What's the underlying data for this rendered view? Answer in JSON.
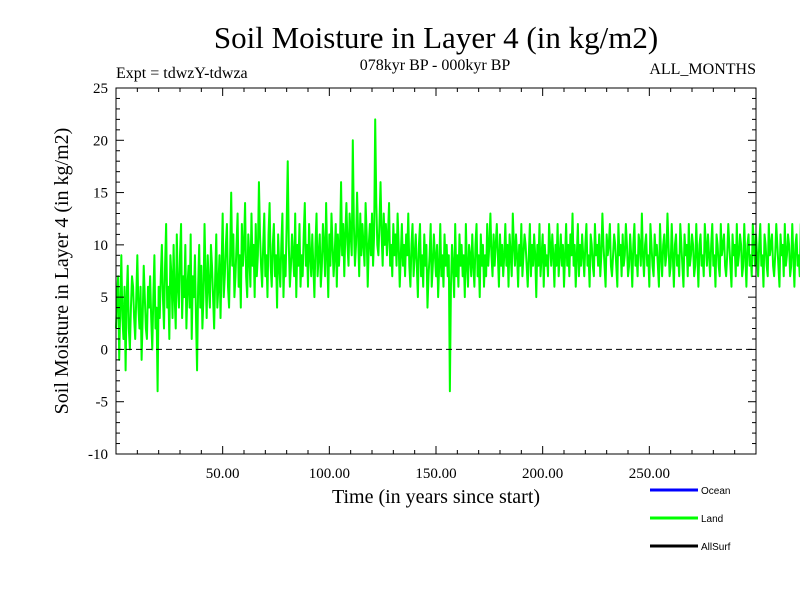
{
  "chart_data": {
    "type": "line",
    "title": "Soil Moisture in Layer 4 (in kg/m2)",
    "subtitle": "078kyr BP - 000kyr BP",
    "experiment_label": "Expt = tdwzY-tdwza",
    "months_label": "ALL_MONTHS",
    "xlabel": "Time (in years since start)",
    "ylabel": "Soil Moisture in Layer 4 (in kg/m2)",
    "xlim": [
      0,
      300
    ],
    "ylim": [
      -10,
      25
    ],
    "x_ticks": [
      50,
      100,
      150,
      200,
      250
    ],
    "x_tick_labels": [
      "50.00",
      "100.00",
      "150.00",
      "200.00",
      "250.00"
    ],
    "y_ticks": [
      -10,
      -5,
      0,
      5,
      10,
      15,
      20,
      25
    ],
    "y_tick_labels": [
      "-10",
      "-5",
      "0",
      "5",
      "10",
      "15",
      "20",
      "25"
    ],
    "reference_line": 0,
    "legend": [
      {
        "name": "Ocean",
        "color": "#0000ff"
      },
      {
        "name": "Land",
        "color": "#00ff00"
      },
      {
        "name": "AllSurf",
        "color": "#000000"
      }
    ],
    "series": [
      {
        "name": "Land",
        "color": "#00ff00",
        "x_start": 0,
        "x_step": 0.5,
        "values": [
          2,
          5,
          7,
          -1,
          4,
          9,
          3,
          1,
          6,
          -2,
          5,
          8,
          2,
          0,
          4,
          7,
          6,
          3,
          1,
          5,
          9,
          4,
          2,
          6,
          -1,
          3,
          8,
          5,
          2,
          1,
          6,
          4,
          7,
          3,
          0,
          5,
          9,
          2,
          4,
          -4,
          6,
          3,
          7,
          10,
          5,
          2,
          8,
          12,
          4,
          6,
          1,
          9,
          7,
          3,
          10,
          5,
          2,
          11,
          6,
          4,
          9,
          12,
          3,
          7,
          5,
          10,
          2,
          6,
          8,
          4,
          11,
          1,
          7,
          5,
          9,
          3,
          -2,
          6,
          10,
          4,
          8,
          2,
          5,
          12,
          7,
          3,
          9,
          6,
          4,
          10,
          8,
          5,
          2,
          7,
          11,
          4,
          6,
          9,
          3,
          8,
          13,
          5,
          7,
          10,
          12,
          6,
          4,
          9,
          15,
          8,
          11,
          5,
          7,
          10,
          13,
          6,
          9,
          4,
          12,
          8,
          10,
          14,
          7,
          5,
          11,
          9,
          6,
          13,
          8,
          10,
          5,
          12,
          7,
          9,
          16,
          11,
          8,
          6,
          10,
          13,
          7,
          9,
          5,
          11,
          14,
          8,
          6,
          10,
          12,
          7,
          9,
          4,
          11,
          8,
          6,
          10,
          13,
          5,
          9,
          7,
          12,
          18,
          10,
          6,
          8,
          11,
          9,
          7,
          13,
          5,
          10,
          8,
          12,
          6,
          9,
          7,
          11,
          14,
          8,
          10,
          6,
          12,
          9,
          7,
          11,
          8,
          5,
          10,
          13,
          7,
          9,
          11,
          6,
          8,
          12,
          10,
          7,
          14,
          9,
          5,
          11,
          8,
          13,
          10,
          7,
          9,
          12,
          6,
          11,
          8,
          10,
          16,
          9,
          12,
          7,
          11,
          14,
          10,
          8,
          13,
          11,
          9,
          20,
          12,
          8,
          10,
          15,
          11,
          7,
          13,
          9,
          12,
          10,
          8,
          14,
          11,
          6,
          10,
          12,
          9,
          13,
          8,
          11,
          22,
          14,
          10,
          9,
          12,
          16,
          11,
          8,
          13,
          10,
          12,
          9,
          11,
          14,
          8,
          10,
          7,
          12,
          9,
          11,
          8,
          13,
          10,
          6,
          9,
          12,
          8,
          10,
          7,
          11,
          9,
          13,
          8,
          6,
          10,
          12,
          7,
          9,
          11,
          8,
          5,
          10,
          12,
          7,
          9,
          6,
          11,
          8,
          10,
          4,
          7,
          9,
          12,
          6,
          8,
          11,
          9,
          7,
          10,
          5,
          8,
          12,
          7,
          9,
          6,
          11,
          8,
          10,
          7,
          9,
          -4,
          6,
          10,
          8,
          5,
          12,
          7,
          9,
          6,
          11,
          8,
          10,
          7,
          9,
          5,
          12,
          8,
          6,
          10,
          9,
          7,
          11,
          8,
          6,
          10,
          12,
          7,
          9,
          5,
          11,
          8,
          10,
          6,
          9,
          7,
          12,
          8,
          10,
          13,
          9,
          7,
          11,
          8,
          10,
          12,
          9,
          6,
          11,
          8,
          10,
          7,
          9,
          12,
          8,
          10,
          6,
          11,
          9,
          7,
          13,
          10,
          8,
          11,
          9,
          6,
          10,
          8,
          12,
          7,
          9,
          11,
          10,
          8,
          6,
          9,
          12,
          7,
          10,
          8,
          11,
          9,
          5,
          10,
          8,
          12,
          7,
          9,
          11,
          6,
          10,
          8,
          9,
          7,
          12,
          10,
          8,
          11,
          9,
          6,
          10,
          8,
          12,
          7,
          9,
          11,
          8,
          10,
          6,
          9,
          12,
          8,
          10,
          7,
          11,
          9,
          13,
          8,
          10,
          6,
          9,
          12,
          7,
          10,
          8,
          11,
          9,
          7,
          10,
          12,
          8,
          9,
          6,
          11,
          10,
          8,
          7,
          12,
          9,
          10,
          8,
          11,
          7,
          9,
          13,
          10,
          8,
          6,
          11,
          9,
          10,
          12,
          8,
          7,
          9,
          11,
          10,
          8,
          6,
          12,
          9,
          10,
          7,
          11,
          8,
          9,
          12,
          10,
          7,
          8,
          11,
          9,
          6,
          10,
          12,
          8,
          9,
          7,
          11,
          10,
          8,
          13,
          9,
          7,
          10,
          11,
          8,
          9,
          6,
          12,
          10,
          8,
          7,
          11,
          9,
          10,
          8,
          6,
          12,
          9,
          7,
          10,
          11,
          8,
          9,
          13,
          10,
          7,
          8,
          12,
          9,
          6,
          10,
          11,
          8,
          9,
          7,
          12,
          10,
          8,
          6,
          11,
          9,
          10,
          7,
          12,
          8,
          9,
          11,
          10,
          7,
          8,
          12,
          9,
          6,
          10,
          11,
          8,
          9,
          7,
          12,
          10,
          8,
          11,
          9,
          7,
          10,
          12,
          8,
          9,
          6,
          11,
          10,
          8,
          7,
          12,
          9,
          10,
          11,
          8,
          7,
          9,
          12,
          10,
          8,
          6,
          11,
          9,
          10,
          7,
          12,
          8,
          9,
          11,
          10,
          7,
          8,
          12,
          9,
          6,
          10,
          11,
          8,
          9,
          7,
          12,
          10,
          8,
          11,
          9,
          7,
          10,
          12,
          8,
          9,
          6,
          11,
          10,
          8,
          7,
          12,
          9,
          10,
          11,
          8,
          7,
          9,
          12,
          10,
          8,
          6,
          11,
          9,
          10,
          7,
          12,
          8,
          9,
          11,
          10,
          7,
          8,
          12,
          9,
          6,
          10,
          11,
          8,
          9,
          7,
          12,
          10
        ]
      }
    ]
  }
}
